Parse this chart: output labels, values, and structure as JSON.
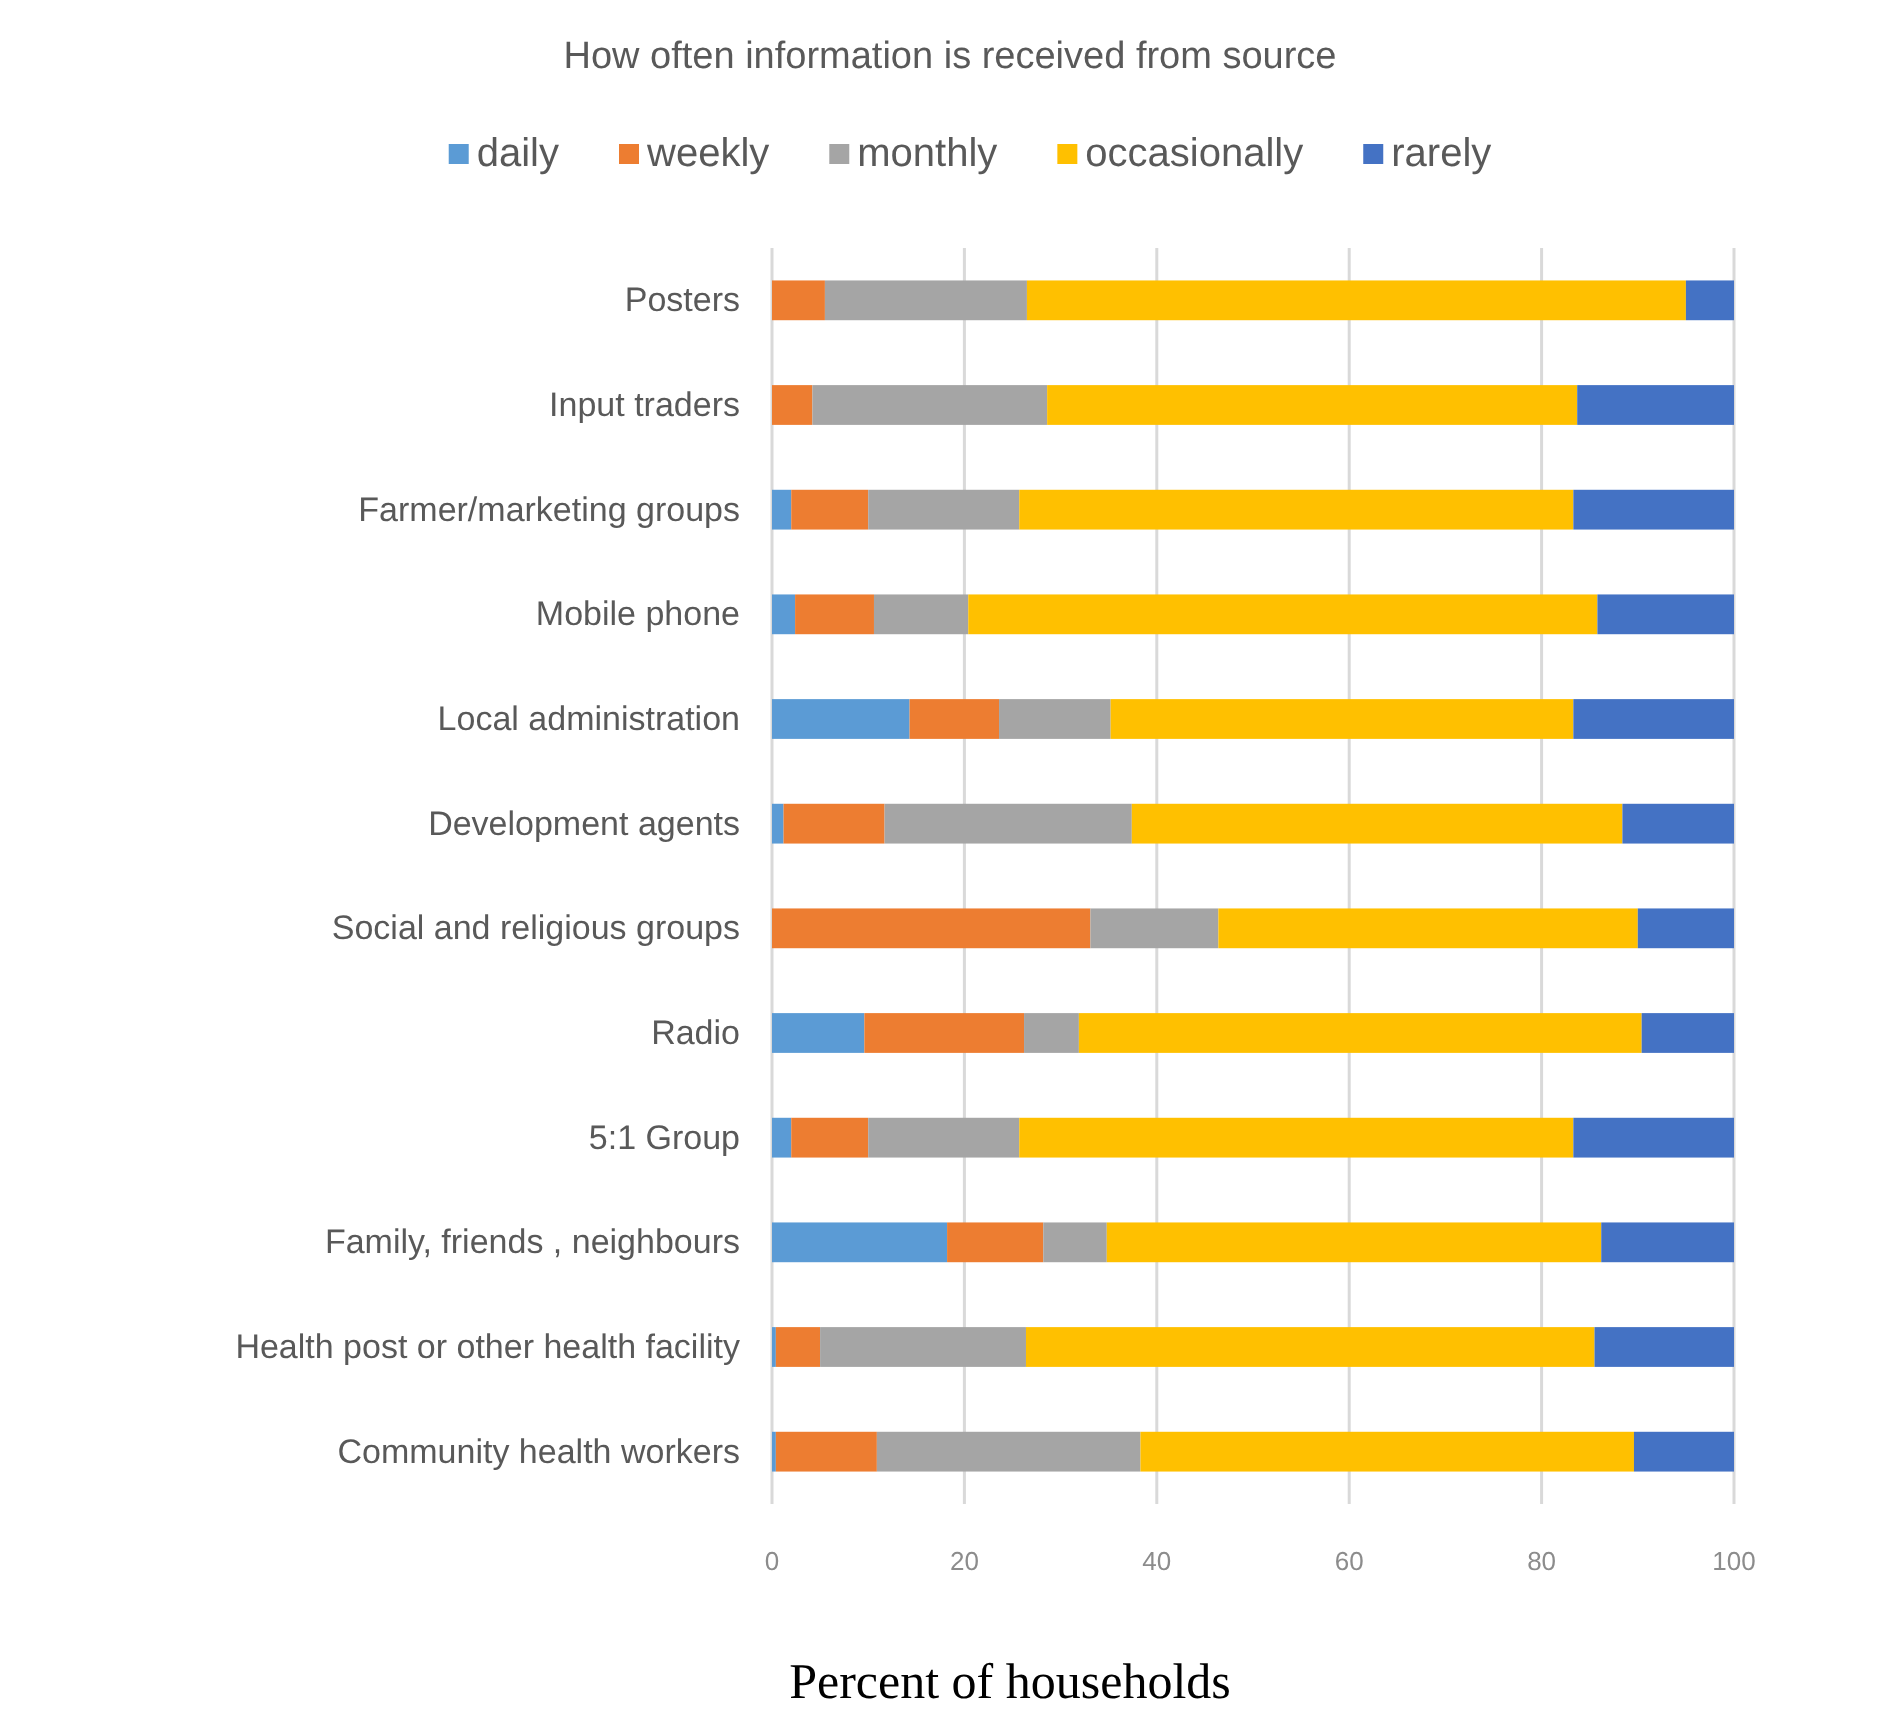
{
  "chart_data": {
    "type": "bar",
    "orientation": "horizontal",
    "stacked": true,
    "title": "How often information is received from source",
    "xlabel": "Percent of households",
    "categories": [
      "Posters",
      "Input traders",
      "Farmer/marketing groups",
      "Mobile phone",
      "Local administration",
      "Development agents",
      "Social and religious groups",
      "Radio",
      "5:1 Group",
      "Family, friends , neighbours",
      "Health post or other health facility",
      "Community health workers"
    ],
    "series": [
      {
        "name": "daily",
        "color": "#5b9bd5",
        "values": [
          0,
          0,
          2,
          2.4,
          14.3,
          1.2,
          0,
          9.6,
          2,
          18.2,
          0.4,
          0.4
        ]
      },
      {
        "name": "weekly",
        "color": "#ed7d31",
        "values": [
          5.5,
          4.2,
          8,
          8.2,
          9.3,
          10.5,
          33.1,
          16.6,
          8,
          10,
          4.6,
          10.5
        ]
      },
      {
        "name": "monthly",
        "color": "#a5a5a5",
        "values": [
          21,
          24.4,
          15.7,
          9.8,
          11.6,
          25.7,
          13.3,
          5.7,
          15.7,
          6.6,
          21.4,
          27.4
        ]
      },
      {
        "name": "occasionally",
        "color": "#ffc000",
        "values": [
          68.5,
          55.1,
          57.6,
          65.4,
          48.1,
          51,
          43.6,
          58.5,
          57.6,
          51.4,
          59.1,
          51.3
        ]
      },
      {
        "name": "rarely",
        "color": "#4472c4",
        "values": [
          5,
          16.3,
          16.7,
          14.2,
          16.7,
          11.6,
          10,
          9.6,
          16.7,
          13.8,
          14.5,
          10.4
        ]
      }
    ],
    "xlim": [
      0,
      100
    ],
    "xticks": [
      0,
      20,
      40,
      60,
      80,
      100
    ],
    "grid": "x",
    "legend": "top"
  }
}
